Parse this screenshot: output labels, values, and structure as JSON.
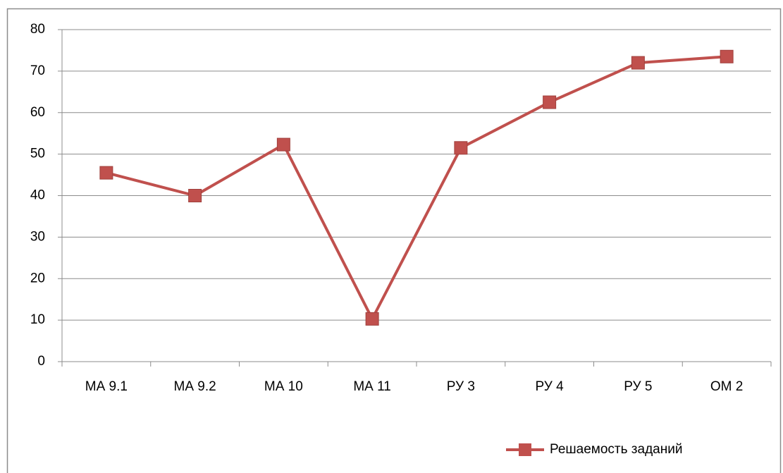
{
  "chart_data": {
    "type": "line",
    "categories": [
      "МА 9.1",
      "МА 9.2",
      "МА 10",
      "МА 11",
      "РУ 3",
      "РУ 4",
      "РУ 5",
      "ОМ 2"
    ],
    "series": [
      {
        "name": "Решаемость заданий",
        "color": "#c0504d",
        "values": [
          45.5,
          40,
          52.3,
          10.3,
          51.5,
          62.5,
          72,
          73.5
        ]
      }
    ],
    "ylim": [
      0,
      80
    ],
    "yticks": [
      0,
      10,
      20,
      30,
      40,
      50,
      60,
      70,
      80
    ],
    "grid": true,
    "legend": "bottom-right"
  }
}
